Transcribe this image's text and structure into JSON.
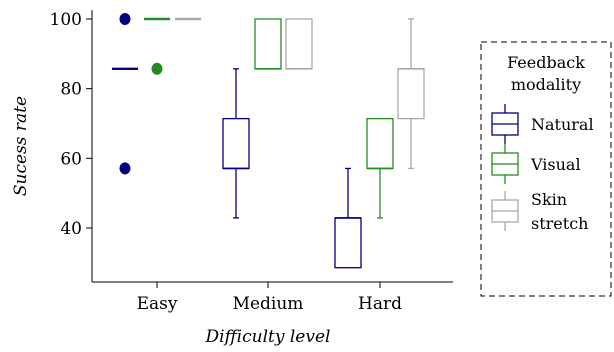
{
  "chart_data": {
    "type": "box",
    "xlabel": "Difficulty level",
    "ylabel": "Sucess rate",
    "categories": [
      "Easy",
      "Medium",
      "Hard"
    ],
    "ylim": [
      22,
      102
    ],
    "yticks": [
      40,
      60,
      80,
      100
    ],
    "grid": false,
    "legend": {
      "title_lines": [
        "Feedback",
        "modality"
      ],
      "placement": "right",
      "entries": [
        {
          "label_lines": [
            "Natural"
          ]
        },
        {
          "label_lines": [
            "Visual"
          ]
        },
        {
          "label_lines": [
            "Skin",
            "stretch"
          ]
        }
      ]
    },
    "series": [
      {
        "name": "Natural",
        "color": "#000080",
        "boxes": [
          {
            "category": "Easy",
            "q1": 85.7,
            "median": 85.7,
            "q3": 85.7,
            "whisker_low": 85.7,
            "whisker_high": 85.7,
            "outliers": [
              100,
              57.1
            ]
          },
          {
            "category": "Medium",
            "q1": 57.1,
            "median": 57.1,
            "q3": 71.4,
            "whisker_low": 42.9,
            "whisker_high": 85.7,
            "outliers": []
          },
          {
            "category": "Hard",
            "q1": 28.6,
            "median": 42.9,
            "q3": 42.9,
            "whisker_low": 28.6,
            "whisker_high": 57.1,
            "outliers": []
          }
        ]
      },
      {
        "name": "Visual",
        "color": "#228b22",
        "boxes": [
          {
            "category": "Easy",
            "q1": 100,
            "median": 100,
            "q3": 100,
            "whisker_low": 100,
            "whisker_high": 100,
            "outliers": [
              85.7
            ]
          },
          {
            "category": "Medium",
            "q1": 85.7,
            "median": 85.7,
            "q3": 100,
            "whisker_low": 85.7,
            "whisker_high": 100,
            "outliers": []
          },
          {
            "category": "Hard",
            "q1": 57.1,
            "median": 57.1,
            "q3": 71.4,
            "whisker_low": 42.9,
            "whisker_high": 71.4,
            "outliers": []
          }
        ]
      },
      {
        "name": "Skin stretch",
        "color": "#a9a9a9",
        "boxes": [
          {
            "category": "Easy",
            "q1": 100,
            "median": 100,
            "q3": 100,
            "whisker_low": 100,
            "whisker_high": 100,
            "outliers": []
          },
          {
            "category": "Medium",
            "q1": 85.7,
            "median": 85.7,
            "q3": 100,
            "whisker_low": 85.7,
            "whisker_high": 100,
            "outliers": []
          },
          {
            "category": "Hard",
            "q1": 71.4,
            "median": 85.7,
            "q3": 85.7,
            "whisker_low": 57.1,
            "whisker_high": 100,
            "outliers": []
          }
        ]
      }
    ]
  }
}
